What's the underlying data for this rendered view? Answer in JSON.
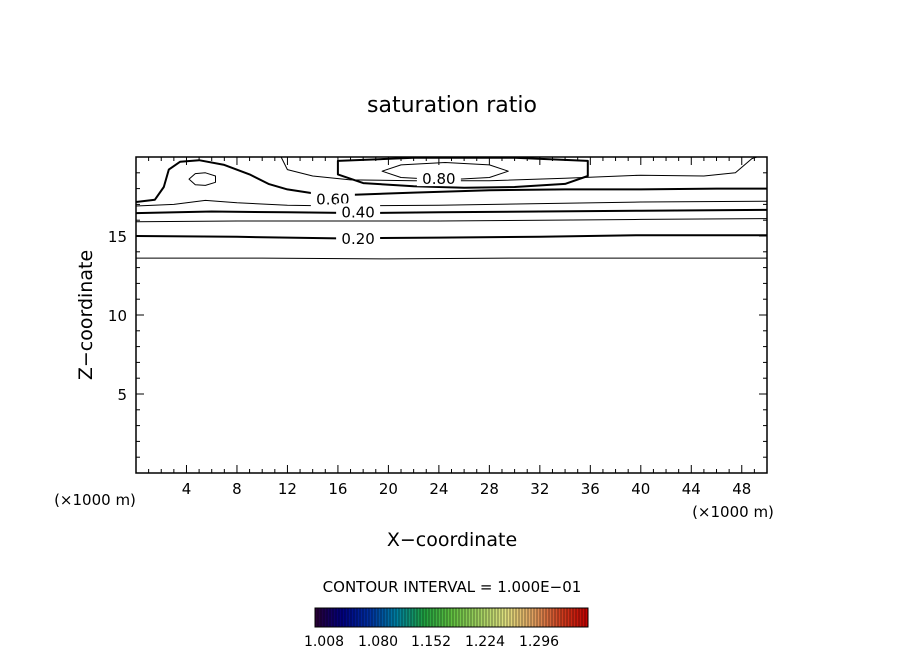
{
  "chart_data": {
    "type": "contour",
    "title": "saturation ratio",
    "xlabel": "X−coordinate",
    "ylabel": "Z−coordinate",
    "x_unit_left": "(×1000 m)",
    "x_unit_right": "(×1000 m)",
    "xlim": [
      0,
      50
    ],
    "ylim": [
      0,
      20
    ],
    "x_ticks": [
      4,
      8,
      12,
      16,
      20,
      24,
      28,
      32,
      36,
      40,
      44,
      48
    ],
    "y_ticks": [
      5,
      10,
      15
    ],
    "contour_labels": [
      {
        "text": "0.80",
        "x": 24,
        "z": 18.6
      },
      {
        "text": "0.60",
        "x": 15.6,
        "z": 17.3
      },
      {
        "text": "0.40",
        "x": 17.6,
        "z": 16.5
      },
      {
        "text": "0.20",
        "x": 17.6,
        "z": 14.8
      }
    ],
    "contours": [
      {
        "level": 0.1,
        "points": [
          [
            0,
            13.6
          ],
          [
            10,
            13.6
          ],
          [
            20,
            13.55
          ],
          [
            30,
            13.6
          ],
          [
            40,
            13.6
          ],
          [
            50,
            13.6
          ]
        ]
      },
      {
        "level": 0.2,
        "points": [
          [
            0,
            15.0
          ],
          [
            8,
            14.95
          ],
          [
            16,
            14.85
          ],
          [
            24,
            14.9
          ],
          [
            32,
            14.95
          ],
          [
            40,
            15.05
          ],
          [
            50,
            15.05
          ]
        ]
      },
      {
        "level": 0.3,
        "points": [
          [
            0,
            15.9
          ],
          [
            8,
            15.95
          ],
          [
            16,
            15.95
          ],
          [
            24,
            15.95
          ],
          [
            32,
            16.0
          ],
          [
            40,
            16.05
          ],
          [
            50,
            16.1
          ]
        ]
      },
      {
        "level": 0.4,
        "points": [
          [
            0,
            16.45
          ],
          [
            6,
            16.55
          ],
          [
            12,
            16.5
          ],
          [
            18,
            16.45
          ],
          [
            24,
            16.5
          ],
          [
            32,
            16.55
          ],
          [
            40,
            16.6
          ],
          [
            50,
            16.65
          ]
        ]
      },
      {
        "level": 0.5,
        "points": [
          [
            0,
            16.9
          ],
          [
            3,
            17.0
          ],
          [
            5.5,
            17.25
          ],
          [
            8,
            17.1
          ],
          [
            12,
            16.95
          ],
          [
            16,
            16.9
          ],
          [
            24,
            16.95
          ],
          [
            32,
            17.05
          ],
          [
            40,
            17.15
          ],
          [
            50,
            17.2
          ]
        ]
      },
      {
        "level": 0.6,
        "points": [
          [
            0,
            17.15
          ],
          [
            1.5,
            17.3
          ],
          [
            2.2,
            18.1
          ],
          [
            2.6,
            19.2
          ],
          [
            3.5,
            19.7
          ],
          [
            5,
            19.8
          ],
          [
            7,
            19.5
          ],
          [
            9,
            18.9
          ],
          [
            10.5,
            18.3
          ],
          [
            12,
            17.95
          ],
          [
            14,
            17.7
          ],
          [
            17,
            17.6
          ],
          [
            22,
            17.75
          ],
          [
            28,
            17.9
          ],
          [
            34,
            17.95
          ],
          [
            40,
            17.95
          ],
          [
            46,
            18.0
          ],
          [
            50,
            18.0
          ]
        ]
      },
      {
        "level": 0.7,
        "points": [
          [
            11.5,
            20
          ],
          [
            12,
            19.2
          ],
          [
            14,
            18.8
          ],
          [
            17,
            18.55
          ],
          [
            22,
            18.5
          ],
          [
            28,
            18.5
          ],
          [
            34,
            18.65
          ],
          [
            40,
            18.85
          ],
          [
            45,
            18.8
          ],
          [
            47.5,
            19.0
          ],
          [
            48.8,
            19.9
          ],
          [
            49.2,
            20
          ]
        ]
      },
      {
        "level": 0.8,
        "closed": true,
        "points": [
          [
            16,
            19.75
          ],
          [
            16,
            18.9
          ],
          [
            18,
            18.35
          ],
          [
            22,
            18.15
          ],
          [
            26,
            18.05
          ],
          [
            30,
            18.1
          ],
          [
            34,
            18.3
          ],
          [
            35.8,
            18.8
          ],
          [
            35.8,
            19.75
          ],
          [
            30,
            19.95
          ],
          [
            22,
            19.95
          ]
        ]
      },
      {
        "level": 0.9,
        "closed": true,
        "points": [
          [
            19.5,
            19.1
          ],
          [
            21,
            18.7
          ],
          [
            24.5,
            18.55
          ],
          [
            28,
            18.7
          ],
          [
            29.5,
            19.1
          ],
          [
            28,
            19.5
          ],
          [
            24.5,
            19.65
          ],
          [
            21,
            19.5
          ]
        ]
      },
      {
        "level": 0.9,
        "closed": true,
        "points": [
          [
            4.2,
            18.6
          ],
          [
            4.7,
            18.25
          ],
          [
            5.5,
            18.2
          ],
          [
            6.3,
            18.4
          ],
          [
            6.3,
            18.8
          ],
          [
            5.5,
            19.0
          ],
          [
            4.7,
            18.95
          ]
        ]
      }
    ],
    "contour_interval_text": "CONTOUR INTERVAL = 1.000E−01",
    "colorbar": {
      "ticks": [
        "1.008",
        "1.080",
        "1.152",
        "1.224",
        "1.296"
      ],
      "colors": [
        "#2a0033",
        "#000080",
        "#0030a0",
        "#0080a0",
        "#20a040",
        "#60c040",
        "#a0d060",
        "#e0e080",
        "#e0a060",
        "#d04020",
        "#c00000"
      ]
    },
    "grid": false
  }
}
